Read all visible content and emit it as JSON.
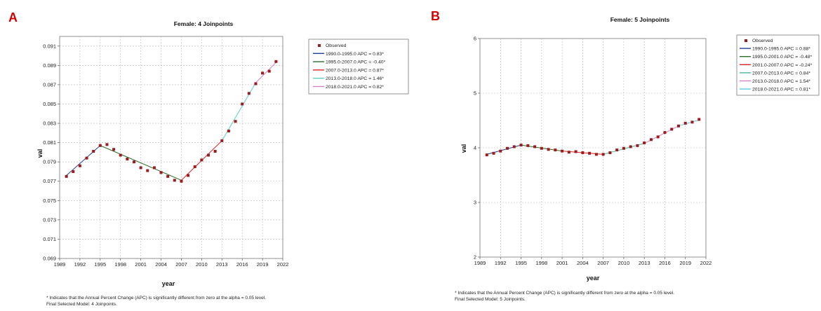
{
  "colors": {
    "observed": "#9b1c1c",
    "seg1": "#1f3e9a",
    "seg2": "#2a6e2a",
    "seg3": "#e02424",
    "seg4_A": "#5ad1c8",
    "seg5_A": "#d67ec4",
    "seg4_B": "#4bb59b",
    "seg5_B": "#d67ec4",
    "seg6_B": "#5bc6e6",
    "grid": "#b8b8b8",
    "panel_letter": "#d40000"
  },
  "panels": [
    {
      "letter": "A",
      "footnote_1": "* Indicates that the Annual Percent Change (APC) is significantly different from zero at the alpha = 0.05 level.",
      "footnote_2": "Final Selected Model: 4 Joinpoints."
    },
    {
      "letter": "B",
      "footnote_1": "* Indicates that the Annual Percent Change (APC) is significantly different from zero at the alpha = 0.05 level.",
      "footnote_2": "Final Selected Model: 5 Joinpoints."
    }
  ],
  "chart_data": [
    {
      "type": "line",
      "title": "Female: 4 Joinpoints",
      "xlabel": "year",
      "ylabel": "val",
      "xlim": [
        1989,
        2022
      ],
      "ylim": [
        0.069,
        0.092
      ],
      "x_ticks": [
        "1989",
        "1992",
        "1995",
        "1998",
        "2001",
        "2004",
        "2007",
        "2010",
        "2013",
        "2016",
        "2019",
        "2022"
      ],
      "y_ticks": [
        "0.069",
        "0.071",
        "0.073",
        "0.075",
        "0.077",
        "0.079",
        "0.081",
        "0.083",
        "0.085",
        "0.087",
        "0.089",
        "0.091"
      ],
      "grid": true,
      "legend_position": "right",
      "observed_label": "Observed",
      "observed": {
        "x": [
          1990,
          1991,
          1992,
          1993,
          1994,
          1995,
          1996,
          1997,
          1998,
          1999,
          2000,
          2001,
          2002,
          2003,
          2004,
          2005,
          2006,
          2007,
          2008,
          2009,
          2010,
          2011,
          2012,
          2013,
          2014,
          2015,
          2016,
          2017,
          2018,
          2019,
          2020,
          2021
        ],
        "y": [
          0.0775,
          0.078,
          0.0786,
          0.0794,
          0.0801,
          0.0807,
          0.0808,
          0.0803,
          0.0797,
          0.0793,
          0.079,
          0.0784,
          0.0781,
          0.0784,
          0.0779,
          0.0775,
          0.0771,
          0.077,
          0.0776,
          0.0785,
          0.0792,
          0.0797,
          0.0801,
          0.0812,
          0.0822,
          0.0832,
          0.085,
          0.0861,
          0.0871,
          0.0882,
          0.0884,
          0.0894
        ]
      },
      "series": [
        {
          "name": "1990.0-1995.0 APC  =  0.83*",
          "x": [
            1990,
            1995
          ],
          "y": [
            0.0776,
            0.0807
          ]
        },
        {
          "name": "1995.0-2007.0 APC  =  -0.40*",
          "x": [
            1995,
            2007
          ],
          "y": [
            0.0807,
            0.0771
          ]
        },
        {
          "name": "2007.0-2013.0 APC  =  0.87*",
          "x": [
            2007,
            2013
          ],
          "y": [
            0.0771,
            0.0812
          ]
        },
        {
          "name": "2013.0-2018.0 APC  =  1.46*",
          "x": [
            2013,
            2018
          ],
          "y": [
            0.0812,
            0.0872
          ]
        },
        {
          "name": "2018.0-2021.0 APC  =  0.82*",
          "x": [
            2018,
            2021
          ],
          "y": [
            0.0872,
            0.0893
          ]
        }
      ]
    },
    {
      "type": "line",
      "title": "Female: 5 Joinpoints",
      "xlabel": "year",
      "ylabel": "val",
      "xlim": [
        1989,
        2022
      ],
      "ylim": [
        2,
        6
      ],
      "x_ticks": [
        "1989",
        "1992",
        "1995",
        "1998",
        "2001",
        "2004",
        "2007",
        "2010",
        "2013",
        "2016",
        "2019",
        "2022"
      ],
      "y_ticks": [
        "2",
        "3",
        "4",
        "5",
        "6"
      ],
      "grid": true,
      "legend_position": "right",
      "observed_label": "Observed",
      "observed": {
        "x": [
          1990,
          1991,
          1992,
          1993,
          1994,
          1995,
          1996,
          1997,
          1998,
          1999,
          2000,
          2001,
          2002,
          2003,
          2004,
          2005,
          2006,
          2007,
          2008,
          2009,
          2010,
          2011,
          2012,
          2013,
          2014,
          2015,
          2016,
          2017,
          2018,
          2019,
          2020,
          2021
        ],
        "y": [
          3.87,
          3.9,
          3.94,
          3.99,
          4.02,
          4.05,
          4.04,
          4.02,
          3.99,
          3.97,
          3.96,
          3.94,
          3.92,
          3.93,
          3.91,
          3.9,
          3.88,
          3.88,
          3.91,
          3.96,
          3.99,
          4.02,
          4.04,
          4.09,
          4.15,
          4.2,
          4.28,
          4.34,
          4.4,
          4.45,
          4.47,
          4.52
        ]
      },
      "series": [
        {
          "name": "1990.0-1995.0 APC  =  0.88*",
          "x": [
            1990,
            1995
          ],
          "y": [
            3.88,
            4.05
          ]
        },
        {
          "name": "1995.0-2001.0 APC  =  -0.48*",
          "x": [
            1995,
            2001
          ],
          "y": [
            4.05,
            3.94
          ]
        },
        {
          "name": "2001.0-2007.0 APC  =  -0.24*",
          "x": [
            2001,
            2007
          ],
          "y": [
            3.94,
            3.88
          ]
        },
        {
          "name": "2007.0-2013.0 APC  =  0.84*",
          "x": [
            2007,
            2013
          ],
          "y": [
            3.88,
            4.08
          ]
        },
        {
          "name": "2013.0-2018.0 APC  =  1.54*",
          "x": [
            2013,
            2018
          ],
          "y": [
            4.08,
            4.4
          ]
        },
        {
          "name": "2018.0-2021.0 APC  =  0.81*",
          "x": [
            2018,
            2021
          ],
          "y": [
            4.4,
            4.51
          ]
        }
      ]
    }
  ]
}
